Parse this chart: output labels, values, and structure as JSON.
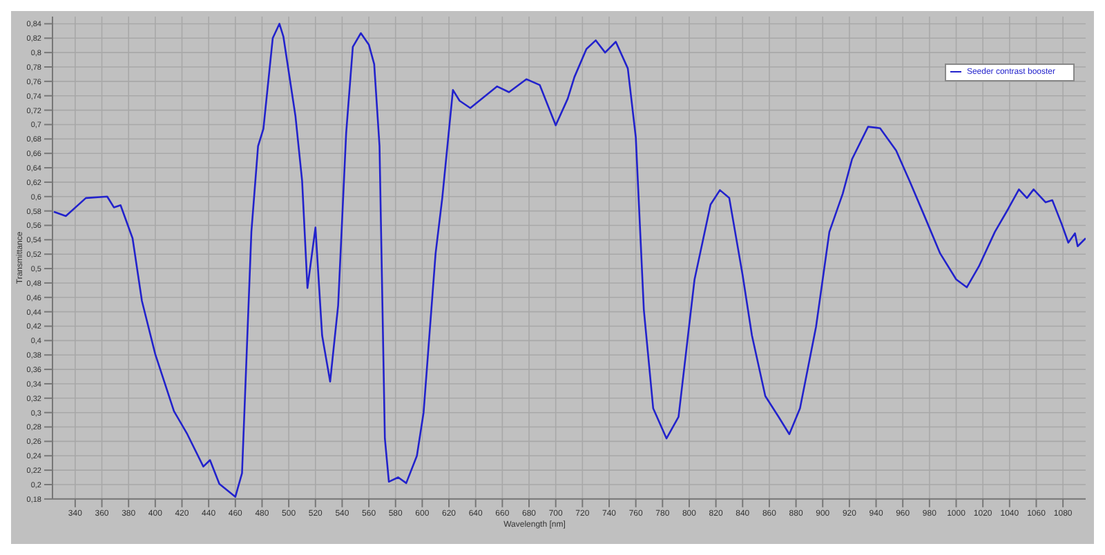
{
  "chart_data": {
    "type": "line",
    "xlabel": "Wavelength [nm]",
    "ylabel": "Transmittance",
    "legend": "top right",
    "grid": true,
    "marker": "none",
    "line_style": "solid",
    "xlim": [
      323,
      1097
    ],
    "xticks": [
      340,
      360,
      380,
      400,
      420,
      440,
      460,
      480,
      500,
      520,
      540,
      560,
      580,
      600,
      620,
      640,
      660,
      680,
      700,
      720,
      740,
      760,
      780,
      800,
      820,
      840,
      860,
      880,
      900,
      920,
      940,
      960,
      980,
      1000,
      1020,
      1040,
      1060,
      1080
    ],
    "ylim": [
      0.18,
      0.85
    ],
    "yticks": [
      {
        "value": 0.18,
        "label": "0,18"
      },
      {
        "value": 0.2,
        "label": "0,2"
      },
      {
        "value": 0.22,
        "label": "0,22"
      },
      {
        "value": 0.24,
        "label": "0,24"
      },
      {
        "value": 0.26,
        "label": "0,26"
      },
      {
        "value": 0.28,
        "label": "0,28"
      },
      {
        "value": 0.3,
        "label": "0,3"
      },
      {
        "value": 0.32,
        "label": "0,32"
      },
      {
        "value": 0.34,
        "label": "0,34"
      },
      {
        "value": 0.36,
        "label": "0,36"
      },
      {
        "value": 0.38,
        "label": "0,38"
      },
      {
        "value": 0.4,
        "label": "0,4"
      },
      {
        "value": 0.42,
        "label": "0,42"
      },
      {
        "value": 0.44,
        "label": "0,44"
      },
      {
        "value": 0.46,
        "label": "0,46"
      },
      {
        "value": 0.48,
        "label": "0,48"
      },
      {
        "value": 0.5,
        "label": "0,5"
      },
      {
        "value": 0.52,
        "label": "0,52"
      },
      {
        "value": 0.54,
        "label": "0,54"
      },
      {
        "value": 0.56,
        "label": "0,56"
      },
      {
        "value": 0.58,
        "label": "0,58"
      },
      {
        "value": 0.6,
        "label": "0,6"
      },
      {
        "value": 0.62,
        "label": "0,62"
      },
      {
        "value": 0.64,
        "label": "0,64"
      },
      {
        "value": 0.66,
        "label": "0,66"
      },
      {
        "value": 0.68,
        "label": "0,68"
      },
      {
        "value": 0.7,
        "label": "0,7"
      },
      {
        "value": 0.72,
        "label": "0,72"
      },
      {
        "value": 0.74,
        "label": "0,74"
      },
      {
        "value": 0.76,
        "label": "0,76"
      },
      {
        "value": 0.78,
        "label": "0,78"
      },
      {
        "value": 0.8,
        "label": "0,8"
      },
      {
        "value": 0.82,
        "label": "0,82"
      },
      {
        "value": 0.84,
        "label": "0,84"
      }
    ],
    "x": [
      324,
      333,
      348,
      364,
      369,
      374,
      383,
      390,
      400,
      414,
      424,
      436,
      441,
      448,
      460,
      465,
      472,
      477,
      481,
      488,
      493,
      496,
      505,
      510,
      514,
      520,
      525,
      531,
      537,
      543,
      548,
      554,
      560,
      564,
      568,
      572,
      575,
      582,
      588,
      596,
      601,
      610,
      615,
      623,
      628,
      636,
      656,
      665,
      678,
      688,
      700,
      709,
      714,
      723,
      730,
      737,
      745,
      754,
      760,
      766,
      773,
      783,
      792,
      804,
      816,
      823,
      830,
      840,
      847,
      857,
      867,
      875,
      883,
      895,
      905,
      915,
      922,
      934,
      943,
      955,
      965,
      976,
      988,
      1000,
      1008,
      1017,
      1029,
      1039,
      1047,
      1053,
      1058,
      1067,
      1072,
      1079,
      1084,
      1089,
      1091,
      1097
    ],
    "series": [
      {
        "name": "Seeder contrast booster",
        "color": "#2222cc",
        "values": [
          0.579,
          0.573,
          0.598,
          0.6,
          0.585,
          0.588,
          0.542,
          0.455,
          0.381,
          0.302,
          0.27,
          0.225,
          0.234,
          0.201,
          0.183,
          0.216,
          0.551,
          0.67,
          0.694,
          0.82,
          0.84,
          0.822,
          0.712,
          0.622,
          0.473,
          0.557,
          0.407,
          0.343,
          0.449,
          0.688,
          0.808,
          0.827,
          0.811,
          0.784,
          0.67,
          0.264,
          0.204,
          0.21,
          0.202,
          0.24,
          0.3,
          0.521,
          0.598,
          0.748,
          0.733,
          0.723,
          0.753,
          0.745,
          0.763,
          0.755,
          0.699,
          0.736,
          0.766,
          0.805,
          0.817,
          0.8,
          0.815,
          0.778,
          0.682,
          0.443,
          0.306,
          0.264,
          0.294,
          0.485,
          0.589,
          0.609,
          0.598,
          0.491,
          0.407,
          0.323,
          0.294,
          0.27,
          0.306,
          0.419,
          0.551,
          0.604,
          0.652,
          0.697,
          0.695,
          0.664,
          0.622,
          0.574,
          0.521,
          0.485,
          0.474,
          0.503,
          0.551,
          0.583,
          0.61,
          0.598,
          0.61,
          0.592,
          0.595,
          0.562,
          0.536,
          0.549,
          0.531,
          0.542
        ]
      }
    ]
  }
}
